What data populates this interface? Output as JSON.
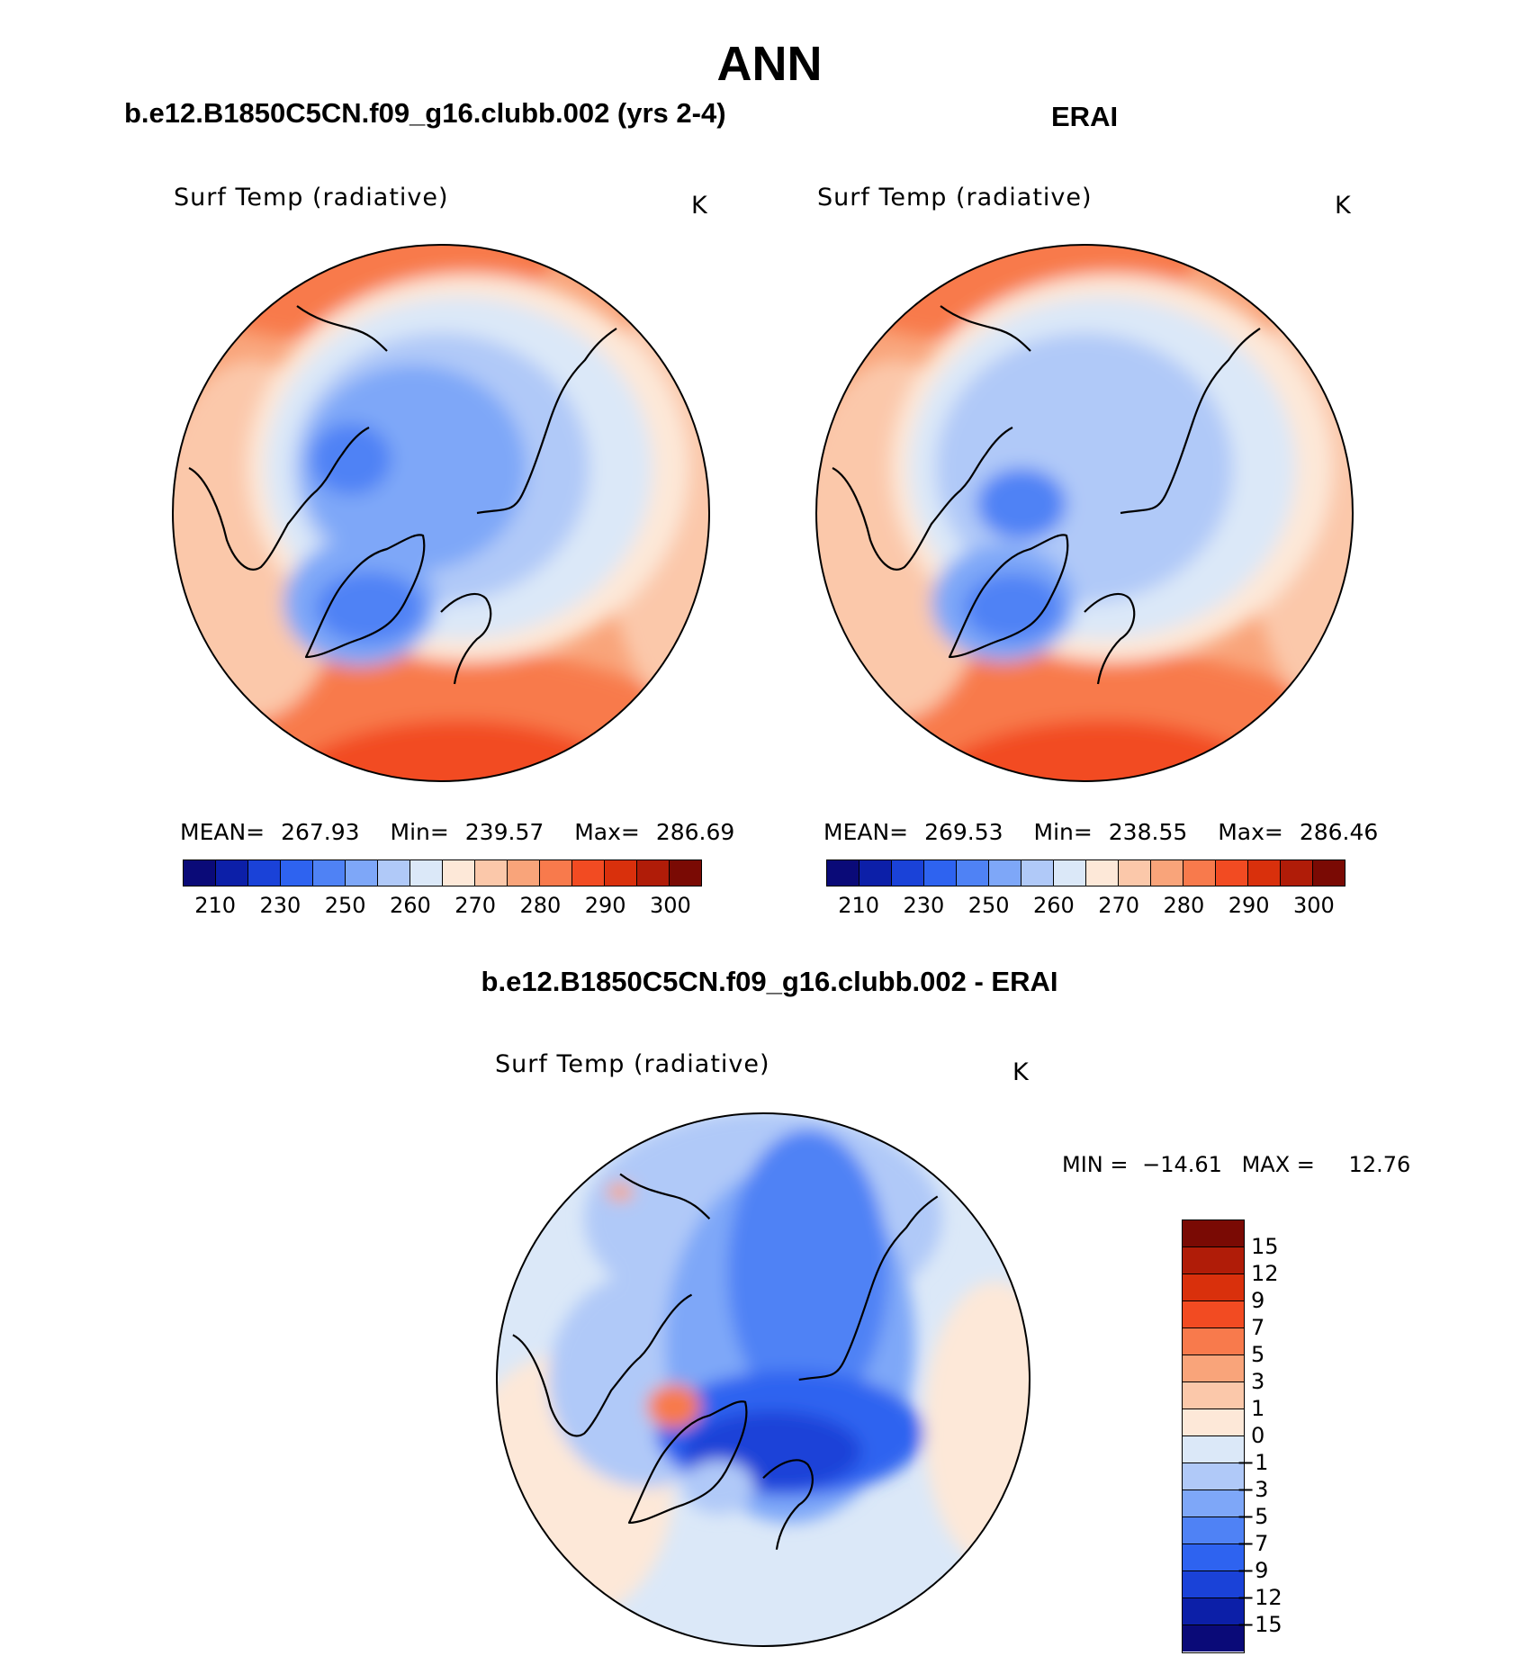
{
  "title": "ANN",
  "panels": {
    "model": {
      "header": "b.e12.B1850C5CN.f09_g16.clubb.002 (yrs 2-4)",
      "variable": "Surf Temp (radiative)",
      "units": "K",
      "stats": {
        "mean_label": "MEAN=",
        "mean": "267.93",
        "min_label": "Min=",
        "min": "239.57",
        "max_label": "Max=",
        "max": "286.69"
      }
    },
    "obs": {
      "header": "ERAI",
      "variable": "Surf Temp (radiative)",
      "units": "K",
      "stats": {
        "mean_label": "MEAN=",
        "mean": "269.53",
        "min_label": "Min=",
        "min": "238.55",
        "max_label": "Max=",
        "max": "286.46"
      }
    },
    "diff": {
      "header": "b.e12.B1850C5CN.f09_g16.clubb.002 - ERAI",
      "variable": "Surf Temp (radiative)",
      "units": "K",
      "stats": {
        "min_label": "MIN =",
        "min": "−14.61",
        "max_label": "MAX =",
        "max": "12.76"
      }
    }
  },
  "chart_data": [
    {
      "type": "map",
      "projection": "north-polar-stereographic",
      "title": "Surf Temp (radiative)",
      "units": "K",
      "colorbar_ticks": [
        "210",
        "230",
        "250",
        "260",
        "270",
        "280",
        "290",
        "300"
      ],
      "colorbar_colors": [
        "#0a0a78",
        "#0c1fa8",
        "#1a42d8",
        "#2e63f0",
        "#4f82f5",
        "#7ea7f8",
        "#b0c9f8",
        "#dbe8f8",
        "#fde8d8",
        "#fbc8aa",
        "#f9a47a",
        "#f87a4c",
        "#f24b22",
        "#d9300c",
        "#b01c08",
        "#7a0a04"
      ],
      "field_description": "cold Greenland and central Arctic (~240-260 K), warm North Atlantic and mid-latitudes (~280-290 K)"
    },
    {
      "type": "map",
      "projection": "north-polar-stereographic",
      "title": "Surf Temp (radiative)",
      "units": "K",
      "colorbar_ticks": [
        "210",
        "230",
        "250",
        "260",
        "270",
        "280",
        "290",
        "300"
      ],
      "colorbar_colors": [
        "#0a0a78",
        "#0c1fa8",
        "#1a42d8",
        "#2e63f0",
        "#4f82f5",
        "#7ea7f8",
        "#b0c9f8",
        "#dbe8f8",
        "#fde8d8",
        "#fbc8aa",
        "#f9a47a",
        "#f87a4c",
        "#f24b22",
        "#d9300c",
        "#b01c08",
        "#7a0a04"
      ]
    },
    {
      "type": "map",
      "projection": "north-polar-stereographic",
      "title": "Surf Temp (radiative)",
      "units": "K",
      "colorbar_ticks": [
        "15",
        "12",
        "9",
        "7",
        "5",
        "3",
        "1",
        "0",
        "−1",
        "−3",
        "−5",
        "−7",
        "−9",
        "−12",
        "−15"
      ],
      "colorbar_colors": [
        "#7a0a04",
        "#b01c08",
        "#d9300c",
        "#f24b22",
        "#f87a4c",
        "#f9a47a",
        "#fbc8aa",
        "#fde8d8",
        "#dbe8f8",
        "#b0c9f8",
        "#7ea7f8",
        "#4f82f5",
        "#2e63f0",
        "#1a42d8",
        "#0c1fa8",
        "#0a0a78"
      ],
      "min": -14.61,
      "max": 12.76
    }
  ]
}
